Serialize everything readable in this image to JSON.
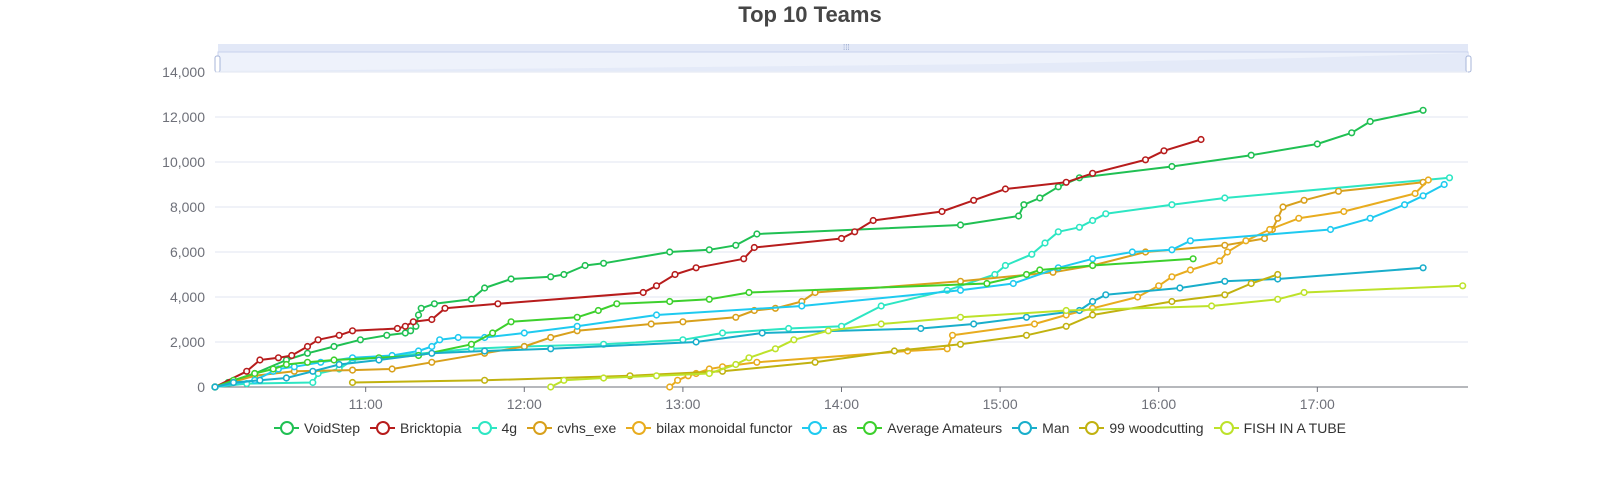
{
  "chart_data": {
    "type": "line",
    "title": "Top 10 Teams",
    "ylim": [
      0,
      14000
    ],
    "y_ticks": [
      "0",
      "2,000",
      "4,000",
      "6,000",
      "8,000",
      "10,000",
      "12,000",
      "14,000"
    ],
    "x_ticks": [
      "11:00",
      "12:00",
      "13:00",
      "14:00",
      "15:00",
      "16:00",
      "17:00"
    ],
    "xlim": [
      "10:03",
      "17:57"
    ],
    "grid": true,
    "legend_position": "bottom",
    "has_data_zoom_slider": true,
    "series": [
      {
        "name": "VoidStep",
        "color": "#20c053",
        "points": [
          [
            "10:03",
            0
          ],
          [
            "10:08",
            200
          ],
          [
            "10:18",
            600
          ],
          [
            "10:30",
            1200
          ],
          [
            "10:38",
            1500
          ],
          [
            "10:48",
            1800
          ],
          [
            "10:58",
            2100
          ],
          [
            "11:08",
            2300
          ],
          [
            "11:15",
            2400
          ],
          [
            "11:17",
            2500
          ],
          [
            "11:19",
            2700
          ],
          [
            "11:20",
            3200
          ],
          [
            "11:21",
            3500
          ],
          [
            "11:26",
            3700
          ],
          [
            "11:40",
            3900
          ],
          [
            "11:45",
            4400
          ],
          [
            "11:55",
            4800
          ],
          [
            "12:10",
            4900
          ],
          [
            "12:15",
            5000
          ],
          [
            "12:23",
            5400
          ],
          [
            "12:30",
            5500
          ],
          [
            "12:55",
            6000
          ],
          [
            "13:10",
            6100
          ],
          [
            "13:20",
            6300
          ],
          [
            "13:28",
            6800
          ],
          [
            "14:45",
            7200
          ],
          [
            "15:07",
            7600
          ],
          [
            "15:09",
            8100
          ],
          [
            "15:15",
            8400
          ],
          [
            "15:22",
            8900
          ],
          [
            "15:30",
            9300
          ],
          [
            "16:05",
            9800
          ],
          [
            "16:35",
            10300
          ],
          [
            "17:00",
            10800
          ],
          [
            "17:13",
            11300
          ],
          [
            "17:20",
            11800
          ],
          [
            "17:40",
            12300
          ]
        ]
      },
      {
        "name": "Bricktopia",
        "color": "#b71c1c",
        "points": [
          [
            "10:03",
            0
          ],
          [
            "10:15",
            700
          ],
          [
            "10:20",
            1200
          ],
          [
            "10:27",
            1300
          ],
          [
            "10:32",
            1400
          ],
          [
            "10:38",
            1800
          ],
          [
            "10:42",
            2100
          ],
          [
            "10:50",
            2300
          ],
          [
            "10:55",
            2500
          ],
          [
            "11:12",
            2600
          ],
          [
            "11:15",
            2700
          ],
          [
            "11:18",
            2900
          ],
          [
            "11:25",
            3000
          ],
          [
            "11:30",
            3500
          ],
          [
            "11:50",
            3700
          ],
          [
            "12:45",
            4200
          ],
          [
            "12:50",
            4500
          ],
          [
            "12:57",
            5000
          ],
          [
            "13:05",
            5300
          ],
          [
            "13:23",
            5700
          ],
          [
            "13:27",
            6200
          ],
          [
            "14:00",
            6600
          ],
          [
            "14:05",
            6900
          ],
          [
            "14:12",
            7400
          ],
          [
            "14:38",
            7800
          ],
          [
            "14:50",
            8300
          ],
          [
            "15:02",
            8800
          ],
          [
            "15:25",
            9100
          ],
          [
            "15:35",
            9500
          ],
          [
            "15:55",
            10100
          ],
          [
            "16:02",
            10500
          ],
          [
            "16:16",
            11000
          ]
        ]
      },
      {
        "name": "4g",
        "color": "#2de6c3",
        "points": [
          [
            "10:03",
            0
          ],
          [
            "10:15",
            150
          ],
          [
            "10:40",
            200
          ],
          [
            "10:42",
            600
          ],
          [
            "10:50",
            800
          ],
          [
            "10:55",
            1200
          ],
          [
            "11:40",
            1700
          ],
          [
            "12:00",
            1800
          ],
          [
            "12:30",
            1900
          ],
          [
            "13:00",
            2100
          ],
          [
            "13:15",
            2400
          ],
          [
            "13:40",
            2600
          ],
          [
            "14:00",
            2700
          ],
          [
            "14:15",
            3600
          ],
          [
            "14:40",
            4300
          ],
          [
            "14:58",
            5000
          ],
          [
            "15:02",
            5400
          ],
          [
            "15:12",
            5900
          ],
          [
            "15:17",
            6400
          ],
          [
            "15:22",
            6900
          ],
          [
            "15:30",
            7100
          ],
          [
            "15:35",
            7400
          ],
          [
            "15:40",
            7700
          ],
          [
            "16:05",
            8100
          ],
          [
            "16:25",
            8400
          ],
          [
            "17:50",
            9300
          ]
        ]
      },
      {
        "name": "cvhs_exe",
        "color": "#d8a01c",
        "points": [
          [
            "10:03",
            0
          ],
          [
            "10:18",
            500
          ],
          [
            "10:33",
            700
          ],
          [
            "10:55",
            750
          ],
          [
            "11:10",
            800
          ],
          [
            "11:25",
            1100
          ],
          [
            "11:45",
            1500
          ],
          [
            "12:00",
            1800
          ],
          [
            "12:10",
            2200
          ],
          [
            "12:20",
            2500
          ],
          [
            "12:48",
            2800
          ],
          [
            "13:00",
            2900
          ],
          [
            "13:20",
            3100
          ],
          [
            "13:27",
            3400
          ],
          [
            "13:35",
            3500
          ],
          [
            "13:45",
            3800
          ],
          [
            "13:50",
            4200
          ],
          [
            "14:45",
            4700
          ],
          [
            "15:20",
            5100
          ],
          [
            "15:35",
            5400
          ],
          [
            "15:55",
            6000
          ],
          [
            "16:25",
            6300
          ],
          [
            "16:40",
            6600
          ],
          [
            "16:43",
            7000
          ],
          [
            "16:45",
            7500
          ],
          [
            "16:47",
            8000
          ],
          [
            "16:55",
            8300
          ],
          [
            "17:08",
            8700
          ],
          [
            "17:40",
            9100
          ]
        ]
      },
      {
        "name": "bilax monoidal functor",
        "color": "#e8ac1f",
        "points": [
          [
            "12:55",
            0
          ],
          [
            "12:58",
            300
          ],
          [
            "13:02",
            500
          ],
          [
            "13:05",
            600
          ],
          [
            "13:10",
            800
          ],
          [
            "13:15",
            900
          ],
          [
            "13:28",
            1100
          ],
          [
            "14:25",
            1600
          ],
          [
            "14:40",
            1700
          ],
          [
            "14:42",
            2300
          ],
          [
            "15:13",
            2800
          ],
          [
            "15:25",
            3200
          ],
          [
            "15:35",
            3500
          ],
          [
            "15:52",
            4000
          ],
          [
            "16:00",
            4500
          ],
          [
            "16:05",
            4900
          ],
          [
            "16:12",
            5200
          ],
          [
            "16:23",
            5600
          ],
          [
            "16:26",
            6000
          ],
          [
            "16:33",
            6500
          ],
          [
            "16:42",
            7000
          ],
          [
            "16:53",
            7500
          ],
          [
            "17:10",
            7800
          ],
          [
            "17:37",
            8600
          ],
          [
            "17:42",
            9200
          ]
        ]
      },
      {
        "name": "as",
        "color": "#1fcaf0",
        "points": [
          [
            "10:03",
            0
          ],
          [
            "10:18",
            300
          ],
          [
            "10:25",
            700
          ],
          [
            "10:27",
            800
          ],
          [
            "10:33",
            900
          ],
          [
            "10:43",
            1100
          ],
          [
            "10:55",
            1300
          ],
          [
            "11:10",
            1400
          ],
          [
            "11:20",
            1600
          ],
          [
            "11:25",
            1800
          ],
          [
            "11:28",
            2100
          ],
          [
            "11:35",
            2200
          ],
          [
            "11:45",
            2200
          ],
          [
            "12:00",
            2400
          ],
          [
            "12:20",
            2700
          ],
          [
            "12:50",
            3200
          ],
          [
            "13:45",
            3600
          ],
          [
            "14:45",
            4300
          ],
          [
            "15:05",
            4600
          ],
          [
            "15:22",
            5300
          ],
          [
            "15:35",
            5700
          ],
          [
            "15:50",
            6000
          ],
          [
            "16:05",
            6100
          ],
          [
            "16:12",
            6500
          ],
          [
            "17:05",
            7000
          ],
          [
            "17:20",
            7500
          ],
          [
            "17:33",
            8100
          ],
          [
            "17:40",
            8500
          ],
          [
            "17:48",
            9000
          ]
        ]
      },
      {
        "name": "Average Amateurs",
        "color": "#3dd02d",
        "points": [
          [
            "10:03",
            0
          ],
          [
            "10:10",
            300
          ],
          [
            "10:18",
            600
          ],
          [
            "10:25",
            800
          ],
          [
            "10:30",
            1000
          ],
          [
            "10:38",
            1100
          ],
          [
            "10:48",
            1200
          ],
          [
            "11:05",
            1300
          ],
          [
            "11:20",
            1400
          ],
          [
            "11:40",
            1900
          ],
          [
            "11:48",
            2400
          ],
          [
            "11:55",
            2900
          ],
          [
            "12:20",
            3100
          ],
          [
            "12:28",
            3400
          ],
          [
            "12:35",
            3700
          ],
          [
            "12:55",
            3800
          ],
          [
            "13:10",
            3900
          ],
          [
            "13:25",
            4200
          ],
          [
            "14:55",
            4600
          ],
          [
            "15:10",
            5000
          ],
          [
            "15:15",
            5200
          ],
          [
            "15:35",
            5400
          ],
          [
            "16:13",
            5700
          ]
        ]
      },
      {
        "name": "Man",
        "color": "#19aecb",
        "points": [
          [
            "10:03",
            0
          ],
          [
            "10:10",
            200
          ],
          [
            "10:20",
            300
          ],
          [
            "10:30",
            400
          ],
          [
            "10:40",
            700
          ],
          [
            "10:50",
            1000
          ],
          [
            "11:05",
            1200
          ],
          [
            "11:25",
            1500
          ],
          [
            "11:45",
            1600
          ],
          [
            "12:10",
            1700
          ],
          [
            "13:05",
            2000
          ],
          [
            "13:30",
            2400
          ],
          [
            "14:30",
            2600
          ],
          [
            "14:50",
            2800
          ],
          [
            "15:10",
            3100
          ],
          [
            "15:30",
            3400
          ],
          [
            "15:35",
            3800
          ],
          [
            "15:40",
            4100
          ],
          [
            "16:08",
            4400
          ],
          [
            "16:25",
            4700
          ],
          [
            "16:45",
            4800
          ],
          [
            "17:40",
            5300
          ]
        ]
      },
      {
        "name": "99 woodcutting",
        "color": "#c1b210",
        "points": [
          [
            "10:55",
            200
          ],
          [
            "11:45",
            300
          ],
          [
            "12:40",
            500
          ],
          [
            "13:15",
            700
          ],
          [
            "13:50",
            1100
          ],
          [
            "14:20",
            1600
          ],
          [
            "14:45",
            1900
          ],
          [
            "15:10",
            2300
          ],
          [
            "15:25",
            2700
          ],
          [
            "15:35",
            3200
          ],
          [
            "16:05",
            3800
          ],
          [
            "16:25",
            4100
          ],
          [
            "16:35",
            4600
          ],
          [
            "16:45",
            5000
          ]
        ]
      },
      {
        "name": "FISH IN A TUBE",
        "color": "#bde22a",
        "points": [
          [
            "12:10",
            0
          ],
          [
            "12:15",
            300
          ],
          [
            "12:30",
            400
          ],
          [
            "12:50",
            500
          ],
          [
            "13:10",
            600
          ],
          [
            "13:20",
            1000
          ],
          [
            "13:25",
            1300
          ],
          [
            "13:35",
            1700
          ],
          [
            "13:42",
            2100
          ],
          [
            "13:55",
            2500
          ],
          [
            "14:15",
            2800
          ],
          [
            "14:45",
            3100
          ],
          [
            "15:25",
            3400
          ],
          [
            "16:20",
            3600
          ],
          [
            "16:45",
            3900
          ],
          [
            "16:55",
            4200
          ],
          [
            "17:55",
            4500
          ]
        ]
      }
    ]
  }
}
